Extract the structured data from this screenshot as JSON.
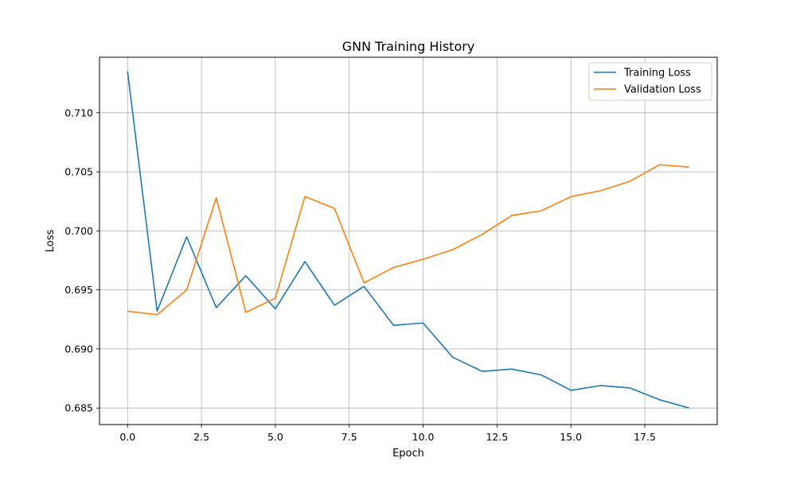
{
  "chart_data": {
    "type": "line",
    "title": "GNN Training History",
    "xlabel": "Epoch",
    "ylabel": "Loss",
    "xlim": [
      -0.95,
      19.95
    ],
    "ylim": [
      0.6836,
      0.7147
    ],
    "xticks": [
      0.0,
      2.5,
      5.0,
      7.5,
      10.0,
      12.5,
      15.0,
      17.5
    ],
    "xtick_labels": [
      "0.0",
      "2.5",
      "5.0",
      "7.5",
      "10.0",
      "12.5",
      "15.0",
      "17.5"
    ],
    "yticks": [
      0.685,
      0.69,
      0.695,
      0.7,
      0.705,
      0.71
    ],
    "ytick_labels": [
      "0.685",
      "0.690",
      "0.695",
      "0.700",
      "0.705",
      "0.710"
    ],
    "grid": true,
    "legend_position": "upper right",
    "x": [
      0,
      1,
      2,
      3,
      4,
      5,
      6,
      7,
      8,
      9,
      10,
      11,
      12,
      13,
      14,
      15,
      16,
      17,
      18,
      19
    ],
    "series": [
      {
        "name": "Training Loss",
        "color": "#1f77b4",
        "values": [
          0.7135,
          0.6932,
          0.6995,
          0.6935,
          0.6962,
          0.6934,
          0.6974,
          0.6937,
          0.6953,
          0.692,
          0.6922,
          0.6893,
          0.6881,
          0.6883,
          0.6878,
          0.6865,
          0.6869,
          0.6867,
          0.6857,
          0.685
        ]
      },
      {
        "name": "Validation Loss",
        "color": "#ff7f0e",
        "values": [
          0.6932,
          0.6929,
          0.695,
          0.7028,
          0.6931,
          0.6943,
          0.7029,
          0.7019,
          0.6956,
          0.6969,
          0.6976,
          0.6984,
          0.6997,
          0.7013,
          0.7017,
          0.7029,
          0.7034,
          0.7042,
          0.7056,
          0.7054
        ]
      }
    ]
  }
}
